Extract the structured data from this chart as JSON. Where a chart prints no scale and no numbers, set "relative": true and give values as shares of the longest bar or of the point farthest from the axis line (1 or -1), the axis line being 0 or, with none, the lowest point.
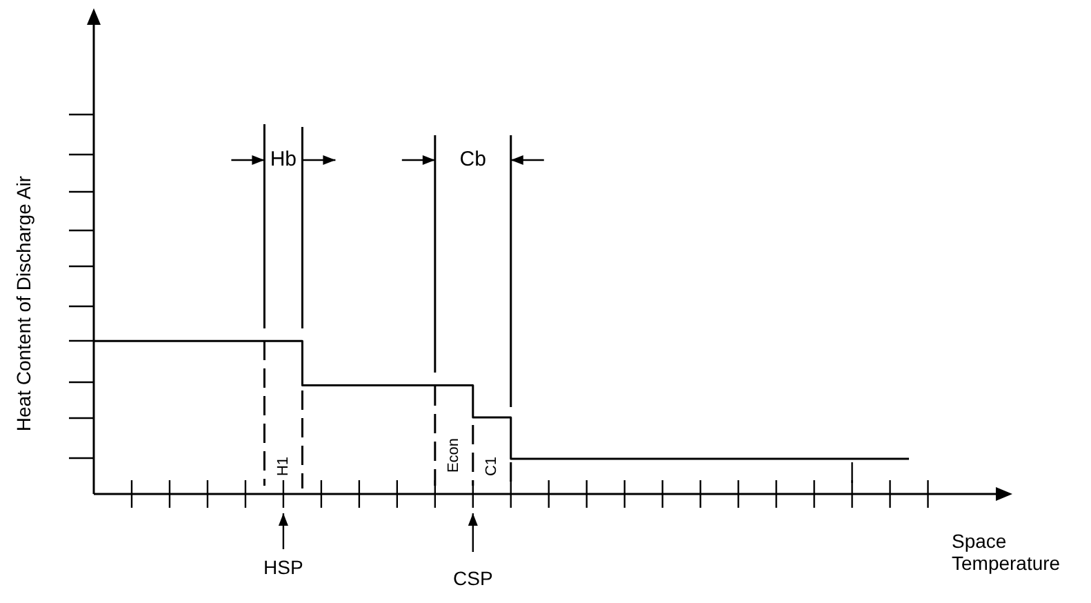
{
  "chart_data": {
    "type": "step",
    "relative": true,
    "xlabel": "Space Temperature",
    "ylabel": "Heat Content of Discharge Air",
    "categories": [
      null,
      null,
      null,
      null,
      null,
      null,
      null,
      null,
      null,
      null,
      null,
      null,
      null,
      null,
      null,
      null,
      null,
      null,
      null,
      null,
      null,
      null,
      null,
      null,
      null,
      null,
      null,
      null,
      null,
      null,
      null,
      null,
      null,
      null,
      null,
      null,
      null,
      null,
      null,
      null,
      null,
      null,
      null,
      null,
      null,
      null,
      null,
      null
    ],
    "values": [
      1,
      1,
      1,
      1,
      1,
      1,
      1,
      1,
      1,
      1,
      1,
      0.71,
      0.71,
      0.71,
      0.71,
      0.71,
      0.71,
      0.71,
      0.71,
      0.71,
      0.5,
      0.5,
      0.23,
      0.23,
      0.23,
      0.23,
      0.23,
      0.23,
      0.23,
      0.23,
      0.23,
      0.23,
      0.23,
      0.23,
      0.23,
      0.23,
      0.23,
      0.23,
      0.23,
      0.23,
      0.23,
      0.23,
      0.23,
      0.23,
      null,
      null,
      null,
      null
    ],
    "color": "#000000",
    "marker": "none",
    "annotations": [
      "Hb",
      "Cb",
      "H1",
      "Econ",
      "C1",
      "HSP",
      "CSP"
    ]
  }
}
